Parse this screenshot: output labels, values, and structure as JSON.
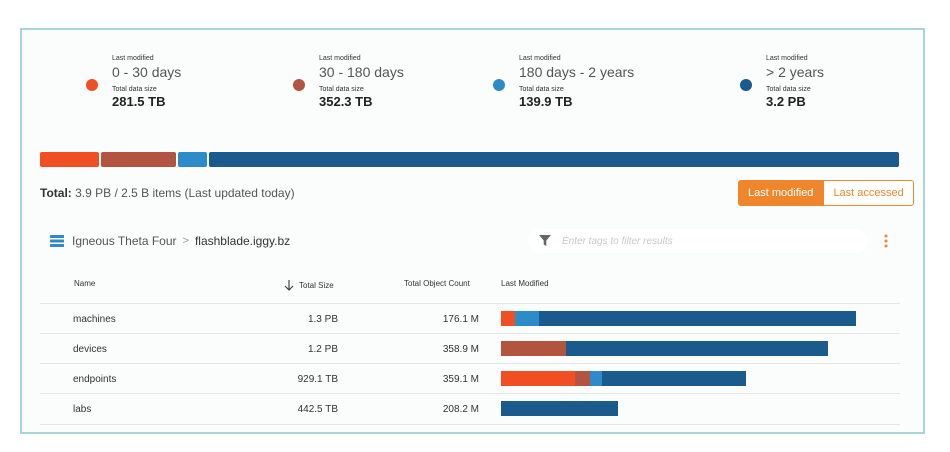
{
  "colors": {
    "c0_30": "#f04e23",
    "c30_180": "#b25440",
    "c180_2y": "#2e8bc9",
    "c2y": "#1a5a8c",
    "accent": "#f0862c"
  },
  "legend": [
    {
      "modified_label": "Last modified",
      "range": "0 - 30 days",
      "size_label": "Total data size",
      "size": "281.5 TB",
      "color_key": "c0_30"
    },
    {
      "modified_label": "Last modified",
      "range": "30 - 180 days",
      "size_label": "Total data size",
      "size": "352.3 TB",
      "color_key": "c30_180"
    },
    {
      "modified_label": "Last modified",
      "range": "180 days - 2 years",
      "size_label": "Total data size",
      "size": "139.9 TB",
      "color_key": "c180_2y"
    },
    {
      "modified_label": "Last modified",
      "range": "> 2 years",
      "size_label": "Total data size",
      "size": "3.2 PB",
      "color_key": "c2y"
    }
  ],
  "total": {
    "label": "Total:",
    "text": "3.9 PB  /  2.5 B items  (Last updated today)"
  },
  "toggle": {
    "last_modified": "Last modified",
    "last_accessed": "Last accessed",
    "selected": "last_modified"
  },
  "breadcrumb": {
    "parent": "Igneous Theta Four",
    "current": "flashblade.iggy.bz"
  },
  "filter": {
    "placeholder": "Enter tags to filter results"
  },
  "table": {
    "headers": {
      "name": "Name",
      "total_size": "Total Size",
      "object_count": "Total Object Count",
      "last_modified": "Last Modified"
    },
    "sort_column": "total_size",
    "sort_direction": "descending",
    "rows": [
      {
        "name": "machines",
        "size": "1.3 PB",
        "count": "176.1 M",
        "breakdown_fraction_of_max": 1.0,
        "breakdown": {
          "c0_30": 0.04,
          "c30_180": 0.0,
          "c180_2y": 0.068,
          "c2y": 0.892
        }
      },
      {
        "name": "devices",
        "size": "1.2 PB",
        "count": "358.9 M",
        "breakdown_fraction_of_max": 0.92,
        "breakdown": {
          "c0_30": 0.0,
          "c30_180": 0.2,
          "c180_2y": 0.0,
          "c2y": 0.8
        }
      },
      {
        "name": "endpoints",
        "size": "929.1 TB",
        "count": "359.1 M",
        "breakdown_fraction_of_max": 0.69,
        "breakdown": {
          "c0_30": 0.3,
          "c30_180": 0.06,
          "c180_2y": 0.05,
          "c2y": 0.59
        }
      },
      {
        "name": "labs",
        "size": "442.5 TB",
        "count": "208.2 M",
        "breakdown_fraction_of_max": 0.33,
        "breakdown": {
          "c0_30": 0.0,
          "c30_180": 0.0,
          "c180_2y": 0.0,
          "c2y": 1.0
        }
      }
    ]
  },
  "overall_breakdown": {
    "c0_30": 0.071,
    "c30_180": 0.089,
    "c180_2y": 0.036,
    "c2y": 0.804
  }
}
